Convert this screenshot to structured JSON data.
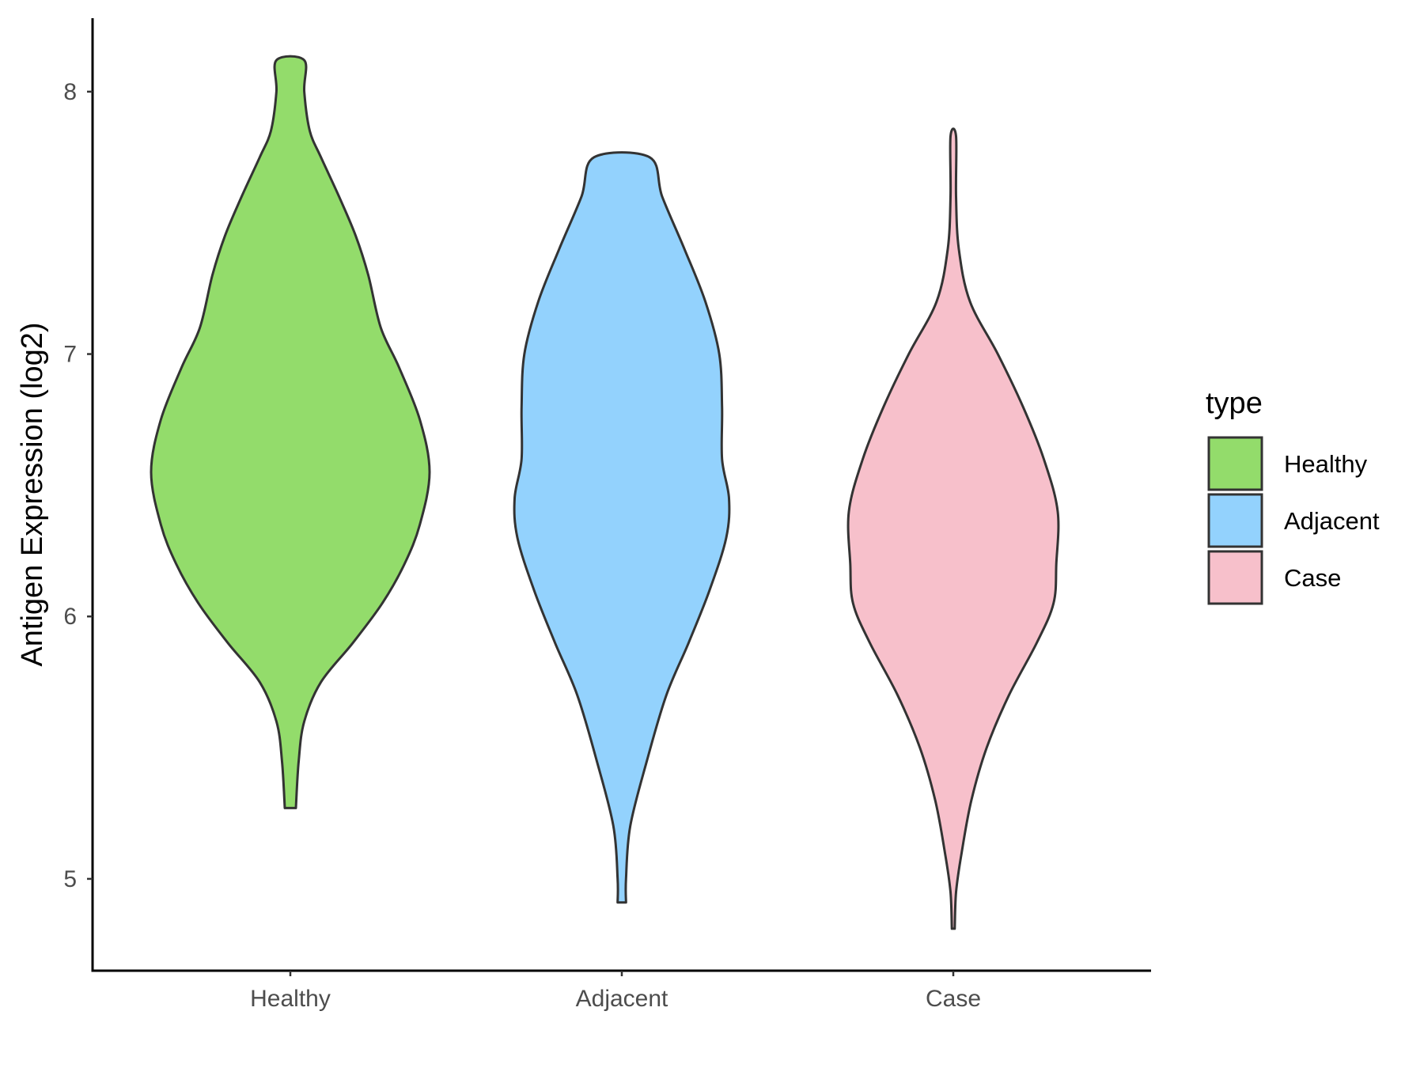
{
  "chart_data": {
    "type": "violin",
    "title": "",
    "xlabel": "",
    "ylabel": "Antigen Expression (log2)",
    "categories": [
      "Healthy",
      "Adjacent",
      "Case"
    ],
    "ylim": [
      4.65,
      8.28
    ],
    "yticks": [
      5,
      6,
      7,
      8
    ],
    "grid": false,
    "legend": {
      "title": "type",
      "placement": "right",
      "entries": [
        "Healthy",
        "Adjacent",
        "Case"
      ]
    },
    "colors": {
      "Healthy": "#93dc6b",
      "Adjacent": "#93d2fd",
      "Case": "#f7c0cb"
    },
    "series": [
      {
        "category": "Healthy",
        "min": 5.27,
        "max": 8.12,
        "density_profile": [
          [
            5.27,
            0.04
          ],
          [
            5.45,
            0.06
          ],
          [
            5.6,
            0.1
          ],
          [
            5.75,
            0.22
          ],
          [
            5.9,
            0.45
          ],
          [
            6.05,
            0.66
          ],
          [
            6.2,
            0.82
          ],
          [
            6.35,
            0.93
          ],
          [
            6.55,
            1.0
          ],
          [
            6.75,
            0.93
          ],
          [
            6.95,
            0.78
          ],
          [
            7.1,
            0.65
          ],
          [
            7.3,
            0.56
          ],
          [
            7.45,
            0.47
          ],
          [
            7.6,
            0.35
          ],
          [
            7.75,
            0.22
          ],
          [
            7.85,
            0.14
          ],
          [
            8.0,
            0.1
          ],
          [
            8.12,
            0.1
          ]
        ]
      },
      {
        "category": "Adjacent",
        "min": 4.91,
        "max": 7.75,
        "density_profile": [
          [
            4.91,
            0.03
          ],
          [
            5.0,
            0.03
          ],
          [
            5.2,
            0.06
          ],
          [
            5.45,
            0.18
          ],
          [
            5.7,
            0.32
          ],
          [
            5.9,
            0.48
          ],
          [
            6.1,
            0.63
          ],
          [
            6.3,
            0.75
          ],
          [
            6.45,
            0.77
          ],
          [
            6.6,
            0.72
          ],
          [
            6.8,
            0.72
          ],
          [
            7.0,
            0.7
          ],
          [
            7.2,
            0.6
          ],
          [
            7.4,
            0.45
          ],
          [
            7.6,
            0.29
          ],
          [
            7.75,
            0.2
          ]
        ]
      },
      {
        "category": "Case",
        "min": 4.81,
        "max": 7.83,
        "density_profile": [
          [
            4.81,
            0.01
          ],
          [
            4.95,
            0.02
          ],
          [
            5.1,
            0.06
          ],
          [
            5.3,
            0.13
          ],
          [
            5.5,
            0.24
          ],
          [
            5.7,
            0.4
          ],
          [
            5.9,
            0.6
          ],
          [
            6.05,
            0.72
          ],
          [
            6.2,
            0.74
          ],
          [
            6.4,
            0.75
          ],
          [
            6.6,
            0.65
          ],
          [
            6.8,
            0.5
          ],
          [
            7.0,
            0.32
          ],
          [
            7.2,
            0.12
          ],
          [
            7.4,
            0.04
          ],
          [
            7.6,
            0.02
          ],
          [
            7.83,
            0.02
          ]
        ]
      }
    ]
  }
}
